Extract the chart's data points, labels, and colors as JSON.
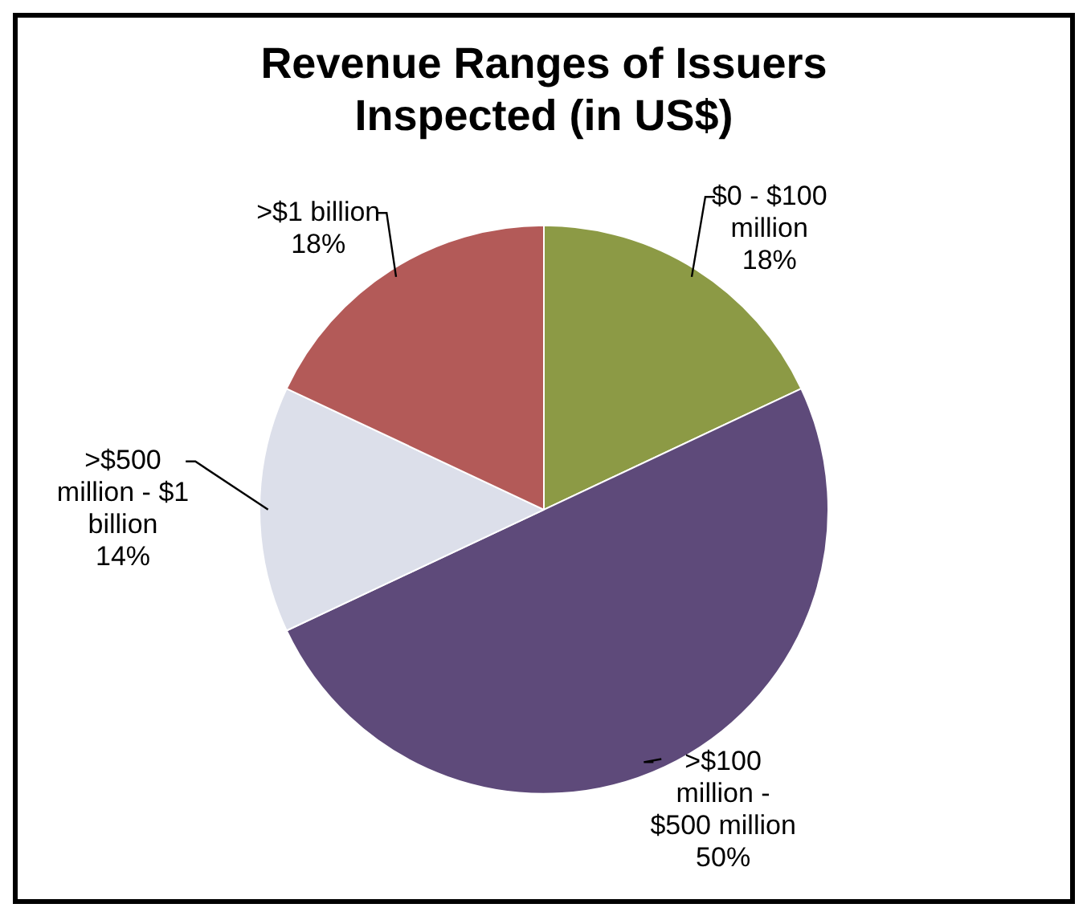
{
  "chart_data": {
    "type": "pie",
    "title": "Revenue Ranges of Issuers Inspected (in US$)",
    "categories": [
      "$0 - $100 million",
      ">$100 million - $500 million",
      ">$500 million - $1 billion",
      ">$1 billion"
    ],
    "values": [
      18,
      50,
      14,
      18
    ],
    "colors": [
      "#8c9a45",
      "#5e4a7a",
      "#dcdfea",
      "#b35a58"
    ],
    "value_labels": [
      "18%",
      "50%",
      "14%",
      "18%"
    ],
    "legend": false
  }
}
